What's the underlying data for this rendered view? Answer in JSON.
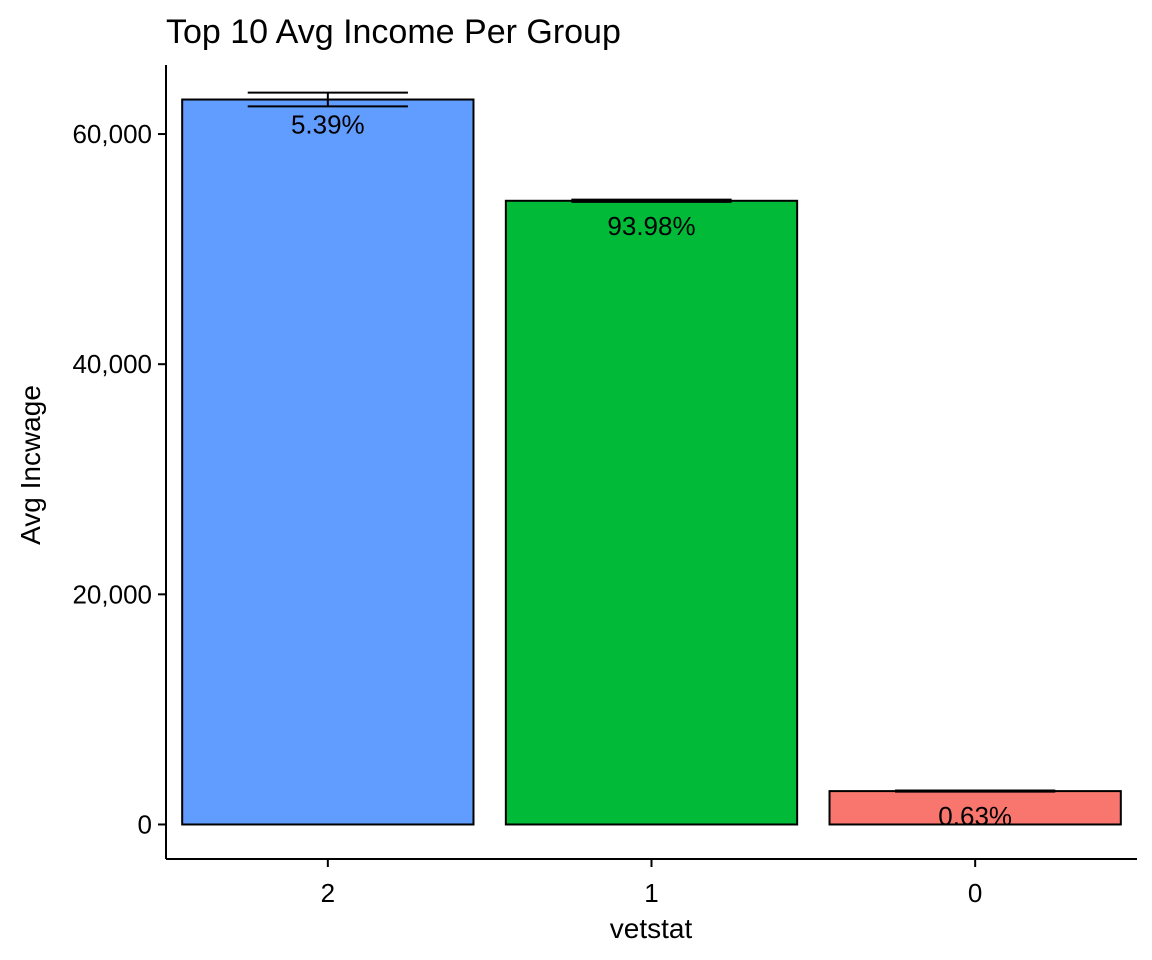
{
  "chart_data": {
    "type": "bar",
    "title": "Top 10 Avg Income Per Group",
    "xlabel": "vetstat",
    "ylabel": "Avg Incwage",
    "categories": [
      "2",
      "1",
      "0"
    ],
    "values": [
      63000,
      54200,
      2900
    ],
    "error_bars": [
      {
        "low": 62400,
        "high": 63600
      },
      {
        "low": 54100,
        "high": 54300
      },
      {
        "low": 2850,
        "high": 2950
      }
    ],
    "labels": [
      "5.39%",
      "93.98%",
      "0.63%"
    ],
    "colors": [
      "#619CFF",
      "#00BA38",
      "#F8766D"
    ],
    "ylim": [
      -3000,
      66000
    ],
    "yticks": [
      0,
      20000,
      40000,
      60000
    ],
    "ytick_labels": [
      "0",
      "20,000",
      "40,000",
      "60,000"
    ],
    "grid": false,
    "legend": "none"
  }
}
